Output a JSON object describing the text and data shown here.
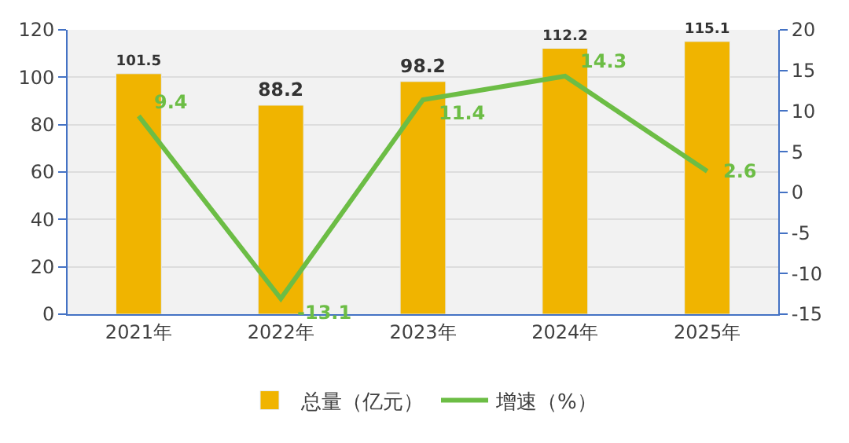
{
  "chart_data": {
    "type": "bar",
    "categories": [
      "2021年",
      "2022年",
      "2023年",
      "2024年",
      "2025年"
    ],
    "series": [
      {
        "name": "总量（亿元）",
        "color": "#f0b400",
        "values": [
          101.5,
          88.2,
          98.2,
          112.2,
          115.1
        ]
      },
      {
        "name": "增速（%）",
        "type": "line",
        "axis": "y2",
        "color": "#6cbd45",
        "values": [
          9.4,
          -13.1,
          11.4,
          14.3,
          2.6
        ]
      }
    ],
    "ylim": [
      0,
      120
    ],
    "yticks": [
      0,
      20,
      40,
      60,
      80,
      100,
      120
    ],
    "y2lim": [
      -15,
      20
    ],
    "y2ticks": [
      -15,
      -10,
      -5,
      0,
      5,
      10,
      15,
      20
    ],
    "data_labels": true,
    "grid": "y",
    "legend": "bottom",
    "marker": "none",
    "line_style": "solid"
  }
}
